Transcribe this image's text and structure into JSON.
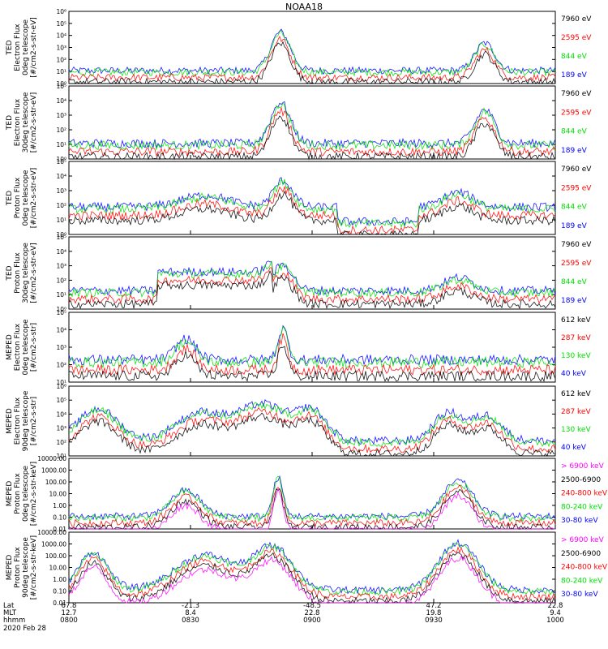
{
  "title": "NOAA18",
  "x_axis": {
    "row_labels": [
      "Lat",
      "MLT",
      "hhmm"
    ],
    "date": "2020 Feb 28",
    "ticks": [
      {
        "lat": "67.8",
        "mlt": "12.7",
        "hhmm": "0800"
      },
      {
        "lat": "-21.3",
        "mlt": "8.4",
        "hhmm": "0830"
      },
      {
        "lat": "-48.5",
        "mlt": "22.8",
        "hhmm": "0900"
      },
      {
        "lat": "47.2",
        "mlt": "19.8",
        "hhmm": "0930"
      },
      {
        "lat": "22.8",
        "mlt": "9.4",
        "hhmm": "1000"
      }
    ]
  },
  "colors": {
    "black": "#000000",
    "red": "#ff0000",
    "green": "#00e000",
    "blue": "#0000ff",
    "magenta": "#ff00ff"
  },
  "chart_data": [
    {
      "type": "line",
      "ylabel": [
        "TED",
        "Electron Flux",
        "0deg telescope",
        "[#/cm2-s-str-eV]"
      ],
      "yscale": "log",
      "ylim": [
        1,
        1000000
      ],
      "ytick_labels": [
        "10⁰",
        "10¹",
        "10²",
        "10³",
        "10⁴",
        "10⁵",
        "10⁶"
      ],
      "legend": [
        {
          "label": "7960 eV",
          "color": "#000000"
        },
        {
          "label": "2595 eV",
          "color": "#ff0000"
        },
        {
          "label": "844 eV",
          "color": "#00e000"
        },
        {
          "label": "189 eV",
          "color": "#0000ff"
        }
      ]
    },
    {
      "type": "line",
      "ylabel": [
        "TED",
        "Electron Flux",
        "30deg telescope",
        "[#/cm2-s-str-eV]"
      ],
      "yscale": "log",
      "ylim": [
        1,
        100000
      ],
      "ytick_labels": [
        "10⁰",
        "10¹",
        "10²",
        "10³",
        "10⁴",
        "10⁵"
      ],
      "legend": [
        {
          "label": "7960 eV",
          "color": "#000000"
        },
        {
          "label": "2595 eV",
          "color": "#ff0000"
        },
        {
          "label": "844 eV",
          "color": "#00e000"
        },
        {
          "label": "189 eV",
          "color": "#0000ff"
        }
      ]
    },
    {
      "type": "line",
      "ylabel": [
        "TED",
        "Proton Flux",
        "0deg telescope",
        "[#/cm2-s-str-eV]"
      ],
      "yscale": "log",
      "ylim": [
        1,
        100000
      ],
      "ytick_labels": [
        "10⁰",
        "10¹",
        "10²",
        "10³",
        "10⁴",
        "10⁵"
      ],
      "legend": [
        {
          "label": "7960 eV",
          "color": "#000000"
        },
        {
          "label": "2595 eV",
          "color": "#ff0000"
        },
        {
          "label": "844 eV",
          "color": "#00e000"
        },
        {
          "label": "189 eV",
          "color": "#0000ff"
        }
      ]
    },
    {
      "type": "line",
      "ylabel": [
        "TED",
        "Proton Flux",
        "30deg telescope",
        "[#/cm2-s-str-eV]"
      ],
      "yscale": "log",
      "ylim": [
        1,
        100000
      ],
      "ytick_labels": [
        "10⁰",
        "10¹",
        "10²",
        "10³",
        "10⁴",
        "10⁵"
      ],
      "legend": [
        {
          "label": "7960 eV",
          "color": "#000000"
        },
        {
          "label": "2595 eV",
          "color": "#ff0000"
        },
        {
          "label": "844 eV",
          "color": "#00e000"
        },
        {
          "label": "189 eV",
          "color": "#0000ff"
        }
      ]
    },
    {
      "type": "line",
      "ylabel": [
        "MEPED",
        "Electron Flux",
        "0deg telescope",
        "[#/cm2-s-str]"
      ],
      "yscale": "log",
      "ylim": [
        10,
        100000
      ],
      "ytick_labels": [
        "10¹",
        "10²",
        "10³",
        "10⁴",
        "10⁵"
      ],
      "legend": [
        {
          "label": "612 keV",
          "color": "#000000"
        },
        {
          "label": "287 keV",
          "color": "#ff0000"
        },
        {
          "label": "130 keV",
          "color": "#00e000"
        },
        {
          "label": "40 keV",
          "color": "#0000ff"
        }
      ]
    },
    {
      "type": "line",
      "ylabel": [
        "MEPED",
        "Electron Flux",
        "90deg telescope",
        "[#/cm2-s-str]"
      ],
      "yscale": "log",
      "ylim": [
        10,
        1000000
      ],
      "ytick_labels": [
        "10¹",
        "10²",
        "10³",
        "10⁴",
        "10⁵",
        "10⁶"
      ],
      "legend": [
        {
          "label": "612 keV",
          "color": "#000000"
        },
        {
          "label": "287 keV",
          "color": "#ff0000"
        },
        {
          "label": "130 keV",
          "color": "#00e000"
        },
        {
          "label": "40 keV",
          "color": "#0000ff"
        }
      ]
    },
    {
      "type": "line",
      "ylabel": [
        "MEPED",
        "Proton Flux",
        "0deg telescope",
        "[#/cm2-s-str-keV]"
      ],
      "yscale": "log",
      "ylim": [
        0.01,
        10000
      ],
      "ytick_labels": [
        "0.01",
        "0.10",
        "1.00",
        "10.00",
        "100.00",
        "1000.00",
        "10000.00"
      ],
      "legend": [
        {
          "label": "> 6900 keV",
          "color": "#ff00ff"
        },
        {
          "label": "2500-6900",
          "color": "#000000"
        },
        {
          "label": "240-800 keV",
          "color": "#ff0000"
        },
        {
          "label": "80-240 keV",
          "color": "#00e000"
        },
        {
          "label": "30-80 keV",
          "color": "#0000ff"
        }
      ]
    },
    {
      "type": "line",
      "ylabel": [
        "MEPED",
        "Proton Flux",
        "90deg telescope",
        "[#/cm2-s-str-keV]"
      ],
      "yscale": "log",
      "ylim": [
        0.01,
        10000
      ],
      "ytick_labels": [
        "0.01",
        "0.10",
        "1.00",
        "10.00",
        "100.00",
        "1000.00",
        "10000.00"
      ],
      "legend": [
        {
          "label": "> 6900 keV",
          "color": "#ff00ff"
        },
        {
          "label": "2500-6900",
          "color": "#000000"
        },
        {
          "label": "240-800 keV",
          "color": "#ff0000"
        },
        {
          "label": "80-240 keV",
          "color": "#00e000"
        },
        {
          "label": "30-80 keV",
          "color": "#0000ff"
        }
      ]
    }
  ]
}
